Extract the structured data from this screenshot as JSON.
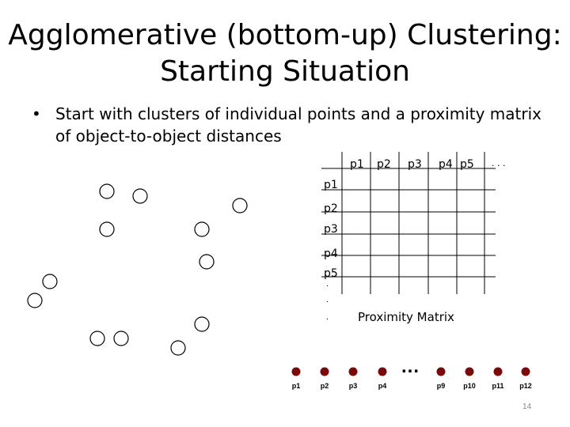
{
  "slide": {
    "title_line1": "Agglomerative (bottom-up) Clustering:",
    "title_line2": "Starting Situation",
    "bullet_symbol": "•",
    "bullet_line1": "Start with clusters of individual points and a proximity matrix",
    "bullet_line2": "of object-to-object distances",
    "page_number": "14"
  },
  "matrix": {
    "col_headers": [
      "p1",
      "p2",
      "p3",
      "p4",
      "p5"
    ],
    "col_more": ". . .",
    "row_headers": [
      "p1",
      "p2",
      "p3",
      "p4",
      "p5"
    ],
    "row_more": [
      ".",
      ".",
      "."
    ],
    "caption": "Proximity Matrix"
  },
  "sequence": {
    "labels_left": [
      "p1",
      "p2",
      "p3",
      "p4"
    ],
    "ellipsis": "...",
    "labels_right": [
      "p9",
      "p10",
      "p11",
      "p12"
    ],
    "dot_color": "#7a0a0a"
  }
}
